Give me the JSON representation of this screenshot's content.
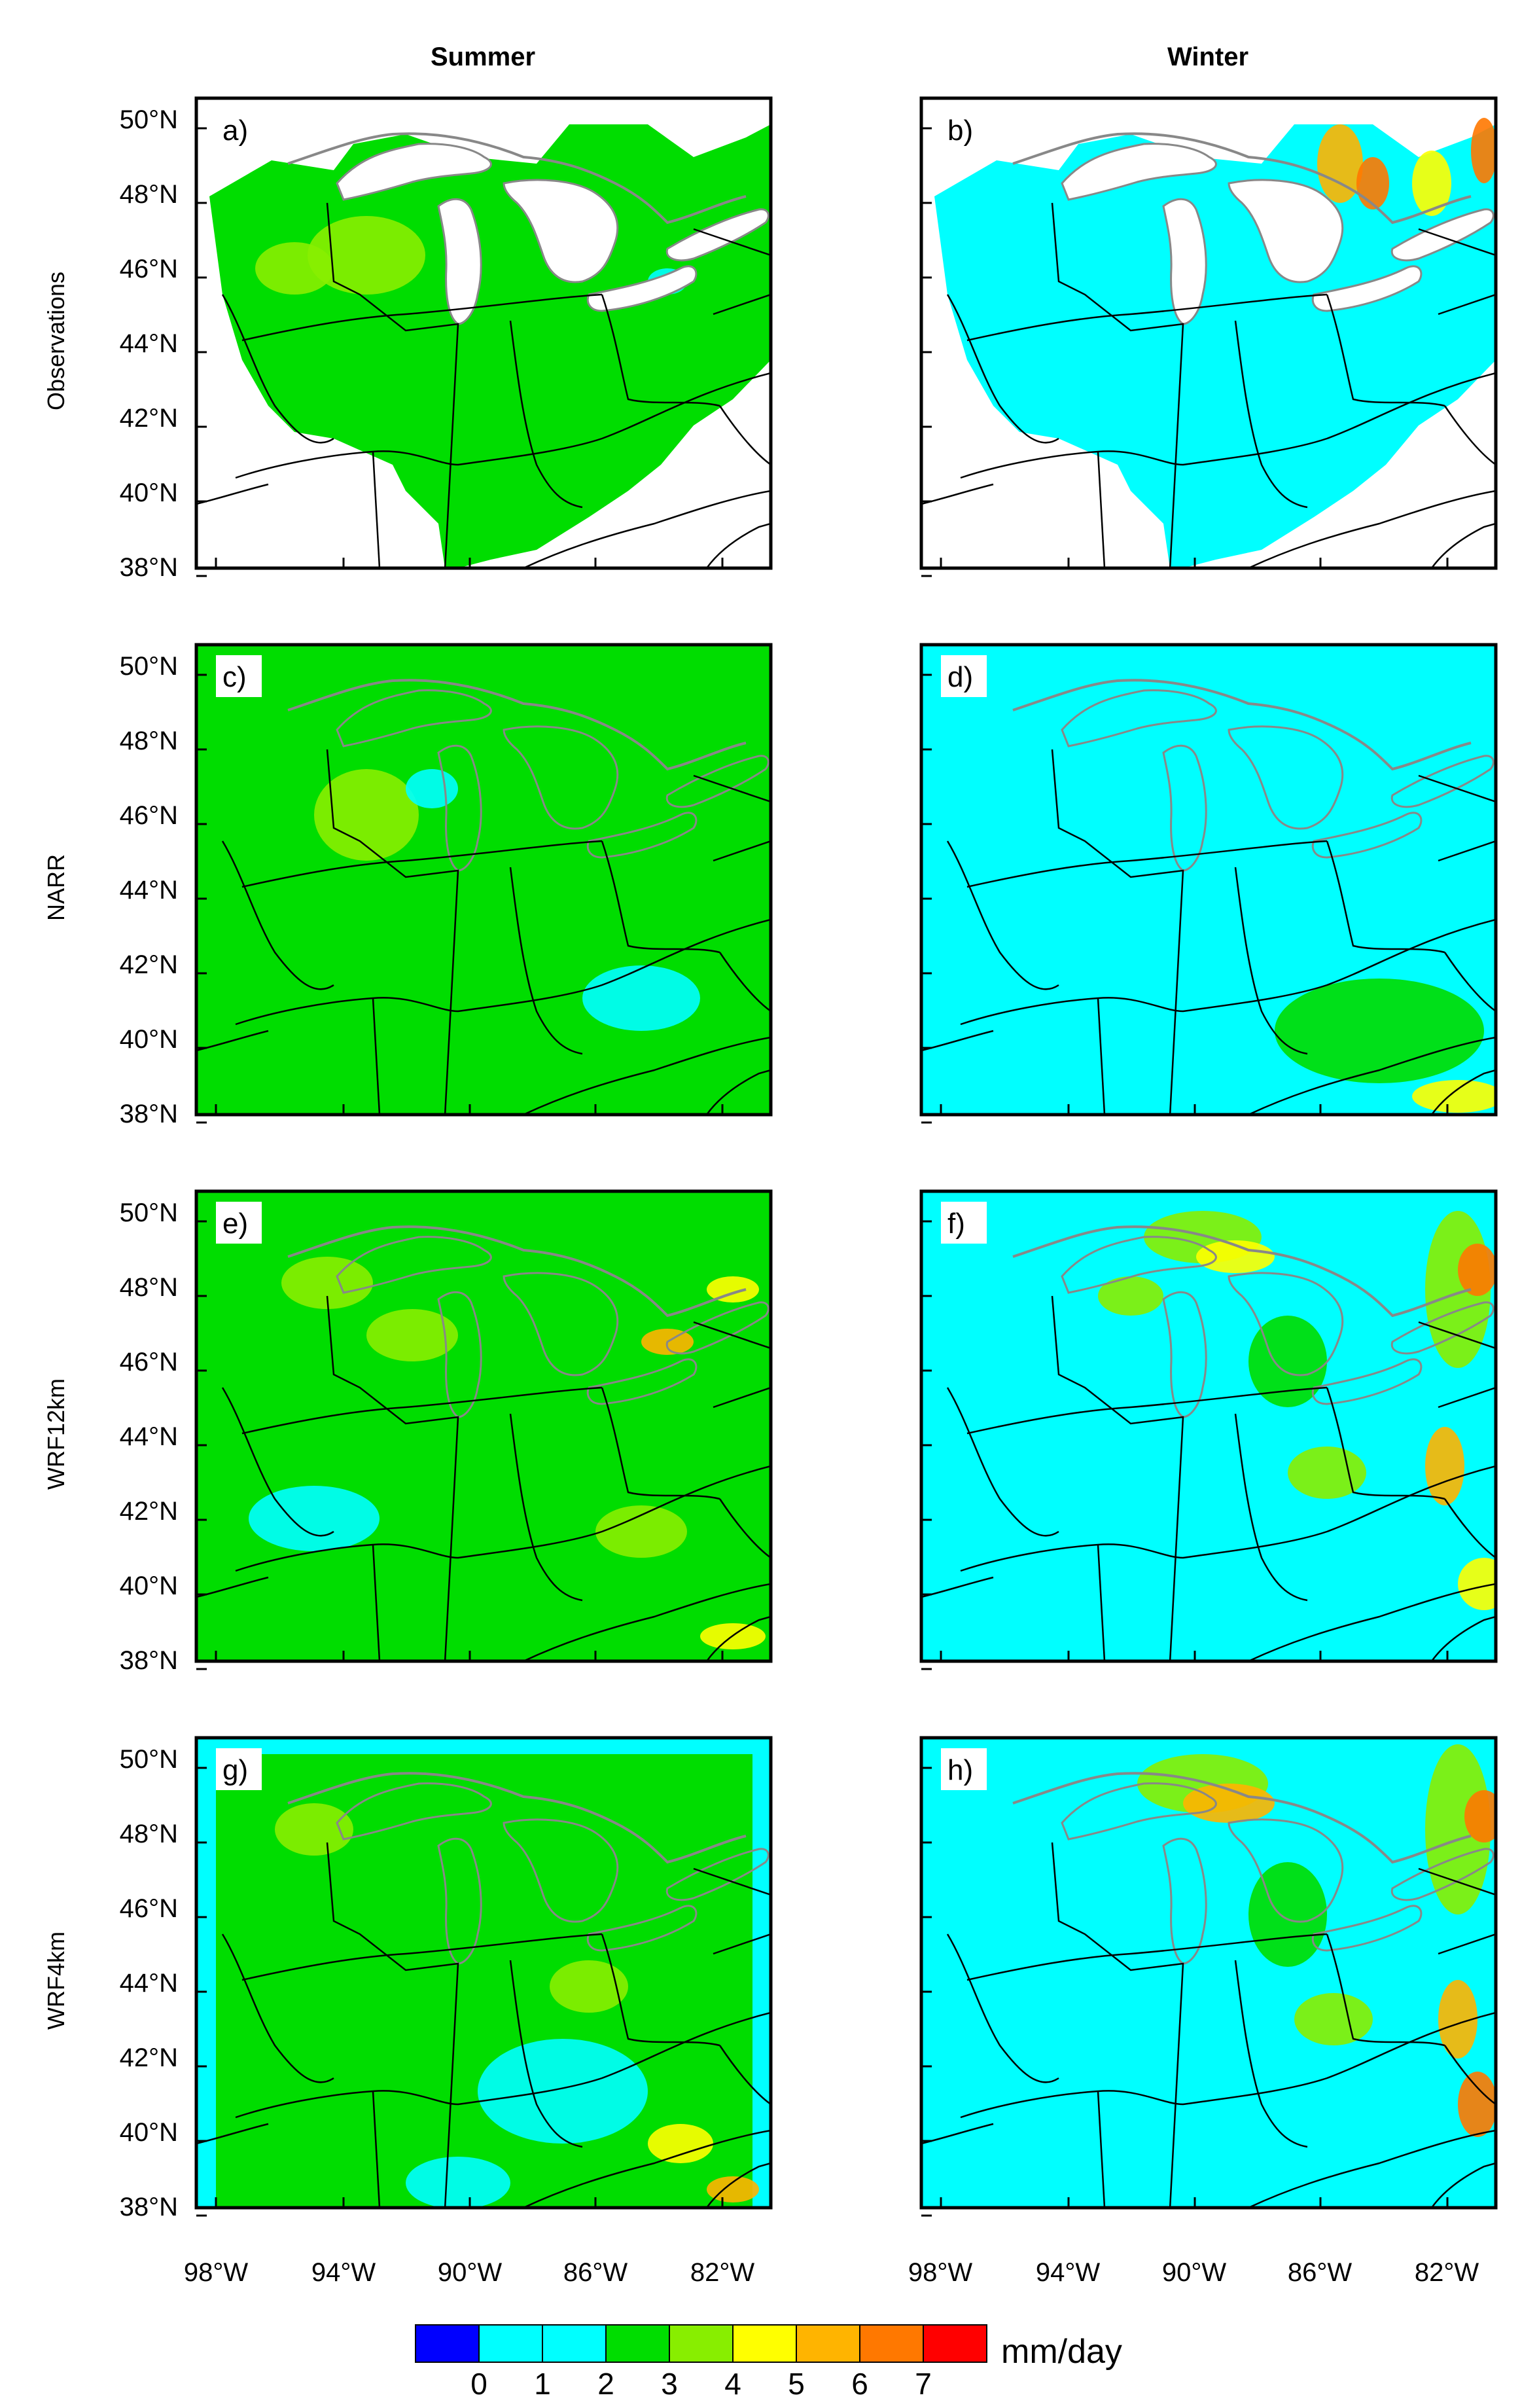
{
  "figure": {
    "column_titles": [
      "Summer",
      "Winter"
    ],
    "row_titles": [
      "Observations",
      "NARR",
      "WRF12km",
      "WRF4km"
    ],
    "panels": [
      {
        "id": "a)",
        "season": "Summer",
        "source": "Observations",
        "base_class": 3,
        "masked_outside_basin": true,
        "lakes_filled_white": true
      },
      {
        "id": "b)",
        "season": "Winter",
        "source": "Observations",
        "base_class": 1,
        "masked_outside_basin": true,
        "lakes_filled_white": true
      },
      {
        "id": "c)",
        "season": "Summer",
        "source": "NARR",
        "base_class": 3
      },
      {
        "id": "d)",
        "season": "Winter",
        "source": "NARR",
        "base_class": 1
      },
      {
        "id": "e)",
        "season": "Summer",
        "source": "WRF12km",
        "base_class": 3
      },
      {
        "id": "f)",
        "season": "Winter",
        "source": "WRF12km",
        "base_class": 2
      },
      {
        "id": "g)",
        "season": "Summer",
        "source": "WRF4km",
        "base_class": 3
      },
      {
        "id": "h)",
        "season": "Winter",
        "source": "WRF4km",
        "base_class": 2
      }
    ],
    "lat_ticks": [
      "50°N",
      "48°N",
      "46°N",
      "44°N",
      "42°N",
      "40°N",
      "38°N"
    ],
    "lon_ticks": [
      "98°W",
      "94°W",
      "90°W",
      "86°W",
      "82°W"
    ],
    "colorbar": {
      "unit": "mm/day",
      "tick_labels": [
        "0",
        "1",
        "2",
        "3",
        "4",
        "5",
        "6",
        "7"
      ],
      "colors": [
        "#0000ff",
        "#00ffff",
        "#00ffff",
        "#00dd00",
        "#88ee00",
        "#ffff00",
        "#ffb400",
        "#ff7800",
        "#ff0000"
      ]
    }
  }
}
